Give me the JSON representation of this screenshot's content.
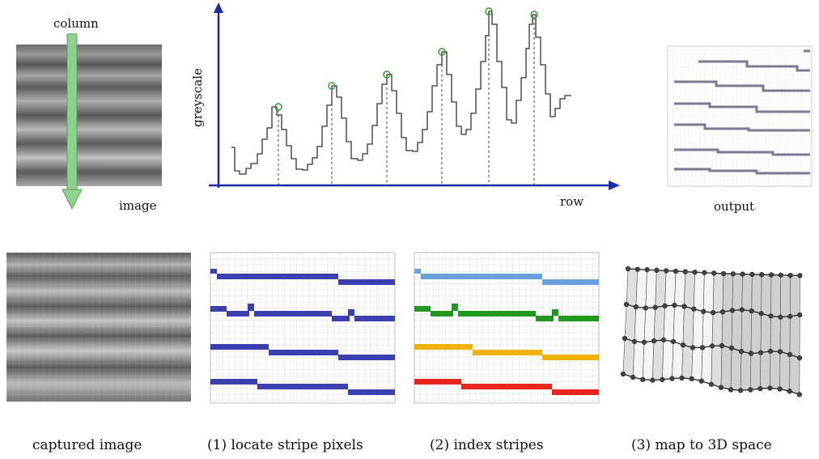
{
  "top": {
    "column_label": "column",
    "image_label": "image",
    "yaxis_label": "greyscale",
    "xaxis_label": "row",
    "output_label": "output"
  },
  "captions": {
    "captured": "captured image",
    "locate": "(1)  locate stripe pixels",
    "index": "(2)  index stripes",
    "map3d": "(3)  map to 3D space"
  },
  "colors": {
    "axis": "#1a2aa8",
    "arrow": "#8fd08f",
    "peak": "#2e9a2e",
    "plot_line": "#333333",
    "stripe_blue": "#3b3fb0",
    "stripe1": "#6a9fe0",
    "stripe2": "#1f9a1f",
    "stripe3": "#f2b200",
    "stripe4": "#e8261e"
  },
  "chart_data": {
    "type": "line",
    "xlabel": "row",
    "ylabel": "greyscale",
    "peaks": 6
  }
}
